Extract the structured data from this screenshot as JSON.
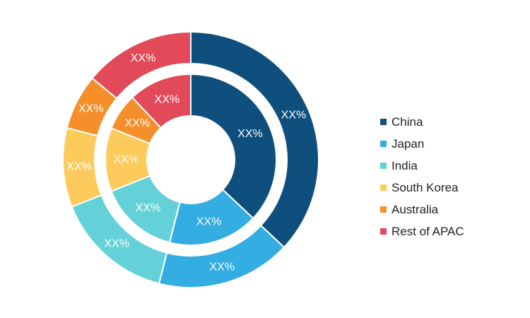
{
  "chart_data": {
    "type": "pie",
    "variant": "nested-donut",
    "categories": [
      "China",
      "Japan",
      "India",
      "South Korea",
      "Australia",
      "Rest of APAC"
    ],
    "colors": [
      "#0e4f7d",
      "#33ade2",
      "#64d1d9",
      "#fccb5b",
      "#f58f2a",
      "#e24a5a"
    ],
    "series": [
      {
        "ring": "outer",
        "values": [
          37,
          17,
          15,
          10,
          7,
          14
        ],
        "labels": [
          "XX%",
          "XX%",
          "XX%",
          "XX%",
          "XX%",
          "XX%"
        ]
      },
      {
        "ring": "inner",
        "values": [
          37,
          17,
          15,
          12,
          7,
          12
        ],
        "labels": [
          "XX%",
          "XX%",
          "XX%",
          "XX%",
          "XX%",
          "XX%"
        ]
      }
    ],
    "legend_position": "right"
  }
}
